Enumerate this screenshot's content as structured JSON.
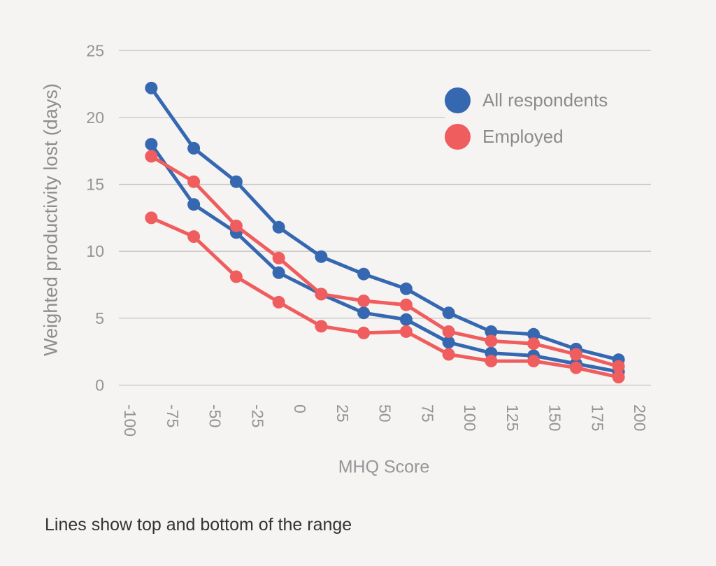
{
  "chart_data": {
    "type": "line",
    "title": "",
    "xlabel": "MHQ Score",
    "ylabel": "Weighted productivity lost (days)",
    "caption": "Lines show top and bottom of the range",
    "x": [
      -87.5,
      -62.5,
      -37.5,
      -12.5,
      12.5,
      37.5,
      62.5,
      87.5,
      112.5,
      137.5,
      162.5,
      187.5
    ],
    "x_ticks": [
      -100,
      -75,
      -50,
      -25,
      0,
      25,
      50,
      75,
      100,
      125,
      150,
      175,
      200
    ],
    "y_ticks": [
      0,
      5,
      10,
      15,
      20,
      25
    ],
    "xlim": [
      -110,
      210
    ],
    "ylim": [
      0,
      25
    ],
    "grid": "horizontal",
    "legend_position": "top-right",
    "series": [
      {
        "name": "All respondents (top of range)",
        "legend_group": "All respondents",
        "color": "#3568b1",
        "values": [
          22.2,
          17.7,
          15.2,
          11.8,
          9.6,
          8.3,
          7.2,
          5.4,
          4.0,
          3.8,
          2.7,
          1.9
        ]
      },
      {
        "name": "All respondents (bottom of range)",
        "legend_group": "All respondents",
        "color": "#3568b1",
        "values": [
          18.0,
          13.5,
          11.4,
          8.4,
          6.8,
          5.4,
          4.9,
          3.2,
          2.4,
          2.2,
          1.6,
          1.0
        ]
      },
      {
        "name": "Employed (top of range)",
        "legend_group": "Employed",
        "color": "#f05d5e",
        "values": [
          17.1,
          15.2,
          11.9,
          9.5,
          6.8,
          6.3,
          6.0,
          4.0,
          3.3,
          3.1,
          2.3,
          1.4
        ]
      },
      {
        "name": "Employed (bottom of range)",
        "legend_group": "Employed",
        "color": "#f05d5e",
        "values": [
          12.5,
          11.1,
          8.1,
          6.2,
          4.4,
          3.9,
          4.0,
          2.3,
          1.8,
          1.8,
          1.3,
          0.6
        ]
      }
    ],
    "legend": [
      {
        "label": "All respondents",
        "color": "#3568b1"
      },
      {
        "label": "Employed",
        "color": "#f05d5e"
      }
    ],
    "colors": {
      "background": "#f5f4f2",
      "gridline": "#c6c6c4",
      "tick_label": "#949494",
      "axis_title": "#8d8d8d",
      "legend_label": "#8b8b8b",
      "caption": "#333333"
    }
  }
}
